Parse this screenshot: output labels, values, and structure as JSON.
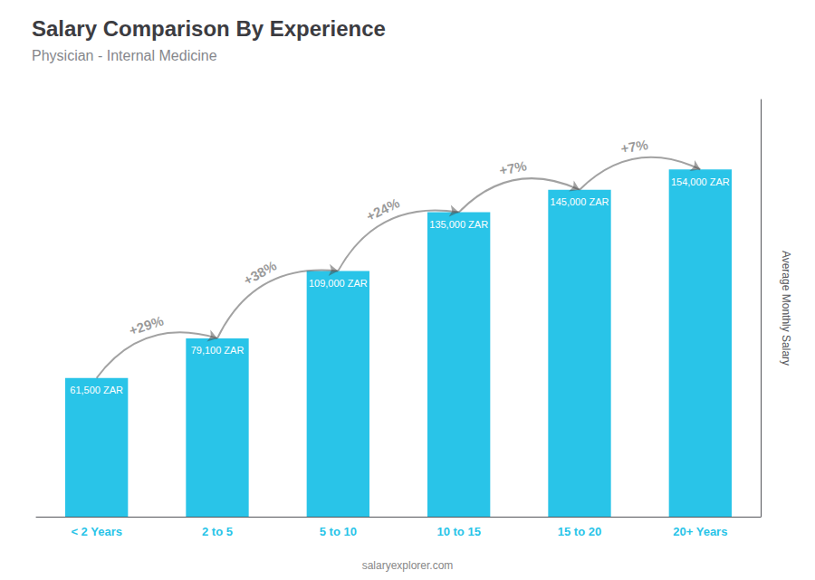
{
  "chart_data": {
    "type": "bar",
    "title": "Salary Comparison By Experience",
    "subtitle": "Physician - Internal Medicine",
    "ylabel": "Average Monthly Salary",
    "watermark": "salaryexplorer.com",
    "categories": [
      "< 2 Years",
      "2 to 5",
      "5 to 10",
      "10 to 15",
      "15 to 20",
      "20+ Years"
    ],
    "values": [
      61500,
      79100,
      109000,
      135000,
      145000,
      154000
    ],
    "value_labels": [
      "61,500 ZAR",
      "79,100 ZAR",
      "109,000 ZAR",
      "135,000 ZAR",
      "145,000 ZAR",
      "154,000 ZAR"
    ],
    "data_labels": true,
    "annotations": [
      "+29%",
      "+38%",
      "+24%",
      "+7%",
      "+7%"
    ],
    "color": "#29C4E8",
    "ylim": [
      0,
      185000
    ],
    "tick_labels": "x",
    "grid": false
  }
}
